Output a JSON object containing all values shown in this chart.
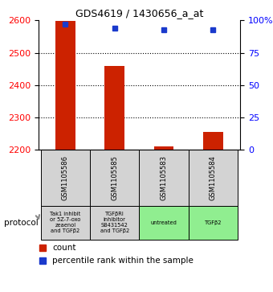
{
  "title": "GDS4619 / 1430656_a_at",
  "samples": [
    "GSM1105586",
    "GSM1105585",
    "GSM1105583",
    "GSM1105584"
  ],
  "protocols": [
    "Tak1 inhibit\nor 5Z-7-oxo\nzeaenol\nand TGFβ2",
    "TGFβRI\ninhibitor\nSB431542\nand TGFβ2",
    "untreated",
    "TGFβ2"
  ],
  "protocol_colors": [
    "#d3d3d3",
    "#d3d3d3",
    "#90ee90",
    "#90ee90"
  ],
  "counts": [
    2598,
    2458,
    2210,
    2255
  ],
  "percentile_ranks": [
    97,
    94,
    93,
    93
  ],
  "ylim_left": [
    2200,
    2600
  ],
  "ylim_right": [
    0,
    100
  ],
  "yticks_left": [
    2200,
    2300,
    2400,
    2500,
    2600
  ],
  "yticks_right": [
    0,
    25,
    50,
    75,
    100
  ],
  "bar_color": "#cc2200",
  "dot_color": "#1a3acc",
  "bar_width": 0.4,
  "label_count": "count",
  "label_percentile": "percentile rank within the sample",
  "protocol_label": "protocol",
  "fig_width": 3.4,
  "fig_height": 3.63
}
